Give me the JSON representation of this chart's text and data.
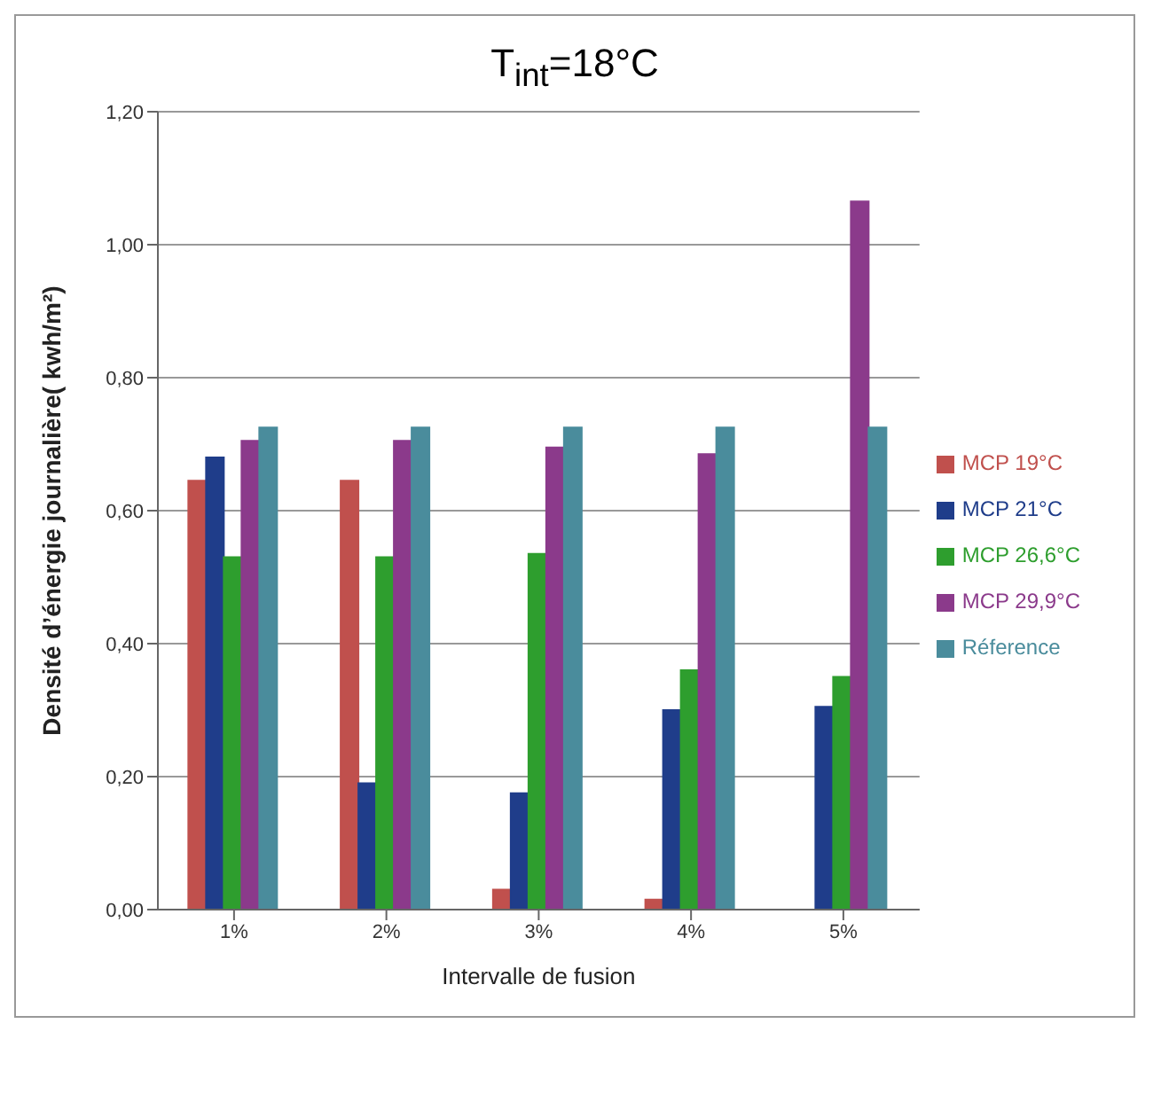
{
  "chart_data": {
    "type": "bar",
    "title": "T$_{int}$=18°C",
    "xlabel": "Intervalle de fusion",
    "ylabel": "Densité d’énergie journalière( kwh/m²)",
    "categories": [
      "1%",
      "2%",
      "3%",
      "4%",
      "5%"
    ],
    "series": [
      {
        "name": "MCP 19°C",
        "color": "#c0504d",
        "values": [
          0.645,
          0.645,
          0.03,
          0.015,
          0
        ]
      },
      {
        "name": "MCP 21°C",
        "color": "#1f3d8a",
        "values": [
          0.68,
          0.19,
          0.175,
          0.3,
          0.305
        ]
      },
      {
        "name": "MCP 26,6°C",
        "color": "#2e9e2e",
        "values": [
          0.53,
          0.53,
          0.535,
          0.36,
          0.35
        ]
      },
      {
        "name": "MCP 29,9°C",
        "color": "#8b3a8b",
        "values": [
          0.705,
          0.705,
          0.695,
          0.685,
          1.065
        ]
      },
      {
        "name": "Réference",
        "color": "#4a8c9c",
        "values": [
          0.725,
          0.725,
          0.725,
          0.725,
          0.725
        ]
      }
    ],
    "ylim": [
      0,
      1.2
    ],
    "yticks": [
      {
        "value": 0,
        "label": "0,00"
      },
      {
        "value": 0.2,
        "label": "0,20"
      },
      {
        "value": 0.4,
        "label": "0,40"
      },
      {
        "value": 0.6,
        "label": "0,60"
      },
      {
        "value": 0.8,
        "label": "0,80"
      },
      {
        "value": 1,
        "label": "1,00"
      },
      {
        "value": 1.2,
        "label": "1,20"
      }
    ],
    "grid": "y",
    "legend": "right"
  }
}
